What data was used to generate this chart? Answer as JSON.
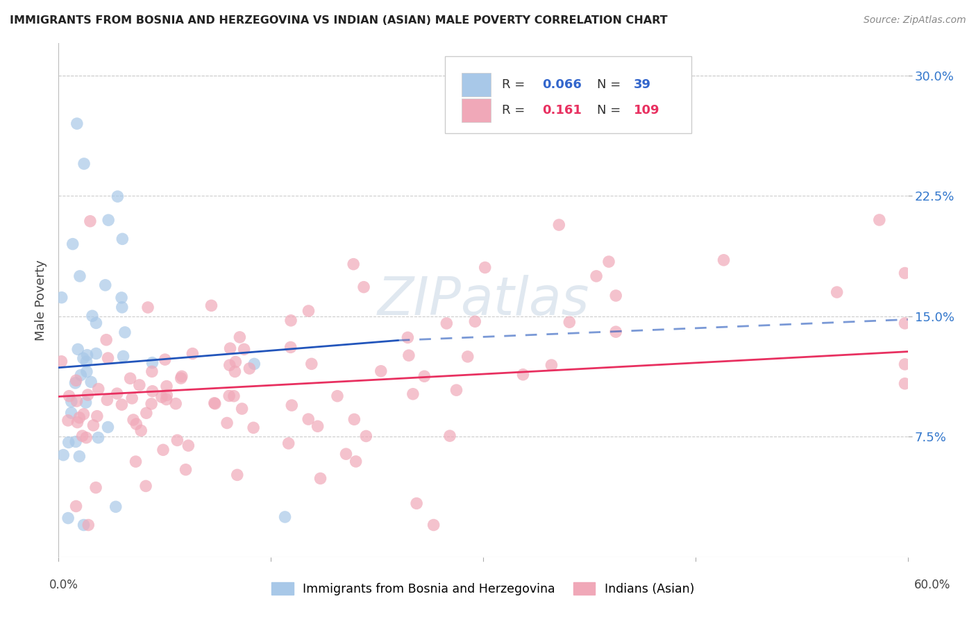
{
  "title": "IMMIGRANTS FROM BOSNIA AND HERZEGOVINA VS INDIAN (ASIAN) MALE POVERTY CORRELATION CHART",
  "source": "Source: ZipAtlas.com",
  "ylabel": "Male Poverty",
  "ytick_values": [
    0.075,
    0.15,
    0.225,
    0.3
  ],
  "ytick_labels": [
    "7.5%",
    "15.0%",
    "22.5%",
    "30.0%"
  ],
  "xlim": [
    0.0,
    0.6
  ],
  "ylim": [
    0.0,
    0.32
  ],
  "bosnia_color": "#a8c8e8",
  "indian_color": "#f0a8b8",
  "bosnia_line_color": "#2255bb",
  "indian_line_color": "#e83060",
  "grid_color": "#cccccc",
  "background_color": "#ffffff",
  "watermark": "ZIPatlas",
  "r_bosnia": 0.066,
  "n_bosnia": 39,
  "r_indian": 0.161,
  "n_indian": 109
}
